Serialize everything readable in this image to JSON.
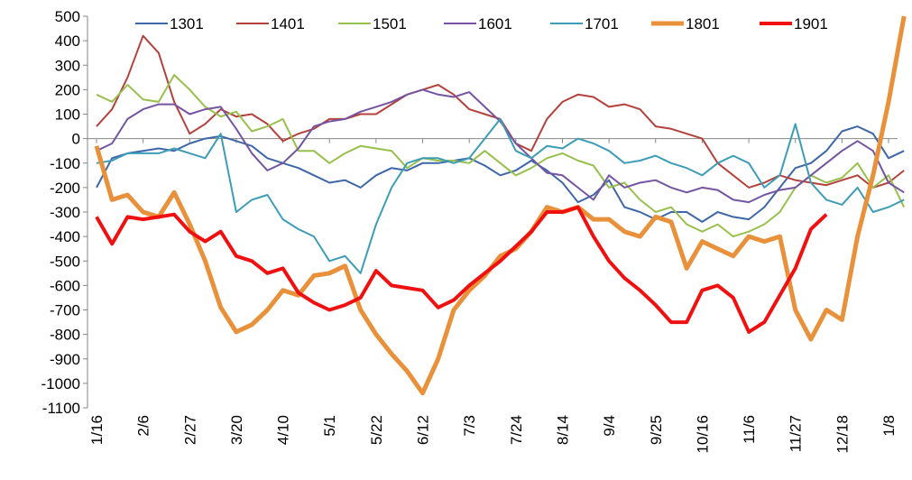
{
  "chart_data": {
    "type": "line",
    "categories": [
      "1/16",
      null,
      null,
      "2/6",
      null,
      null,
      "2/27",
      null,
      null,
      "3/20",
      null,
      null,
      "4/10",
      null,
      null,
      "5/1",
      null,
      null,
      "5/22",
      null,
      null,
      "6/12",
      null,
      null,
      "7/3",
      null,
      null,
      "7/24",
      null,
      null,
      "8/14",
      null,
      null,
      "9/4",
      null,
      null,
      "9/25",
      null,
      null,
      "10/16",
      null,
      null,
      "11/6",
      null,
      null,
      "11/27",
      null,
      null,
      "12/18",
      null,
      null,
      "1/8",
      null
    ],
    "ylim": [
      -1100,
      500
    ],
    "yticks": [
      500,
      400,
      300,
      200,
      100,
      0,
      -100,
      -200,
      -300,
      -400,
      -500,
      -600,
      -700,
      -800,
      -900,
      -1000,
      -1100
    ],
    "legend": "top",
    "series": [
      {
        "name": "1301",
        "color": "#3e67a8",
        "width": 2,
        "values": [
          -200,
          -80,
          -60,
          -50,
          -40,
          -50,
          -20,
          0,
          10,
          -10,
          -30,
          -80,
          -100,
          -120,
          -150,
          -180,
          -170,
          -200,
          -150,
          -120,
          -130,
          -100,
          -100,
          -90,
          -80,
          -110,
          -150,
          -130,
          -90,
          -130,
          -180,
          -260,
          -230,
          -170,
          -280,
          -300,
          -330,
          -300,
          -300,
          -340,
          -300,
          -320,
          -330,
          -280,
          -200,
          -120,
          -100,
          -50,
          30,
          50,
          20,
          -80,
          -50
        ]
      },
      {
        "name": "1401",
        "color": "#b4423c",
        "width": 2,
        "values": [
          50,
          120,
          250,
          420,
          350,
          150,
          20,
          60,
          120,
          90,
          100,
          60,
          -10,
          20,
          40,
          80,
          80,
          100,
          100,
          140,
          180,
          200,
          220,
          180,
          120,
          100,
          80,
          -20,
          -50,
          80,
          150,
          180,
          170,
          130,
          140,
          120,
          50,
          40,
          20,
          0,
          -100,
          -150,
          -200,
          -180,
          -150,
          -170,
          -180,
          -190,
          -170,
          -150,
          -200,
          -180,
          -130
        ]
      },
      {
        "name": "1501",
        "color": "#98c04c",
        "width": 2,
        "values": [
          180,
          150,
          220,
          160,
          150,
          260,
          200,
          130,
          90,
          110,
          30,
          50,
          80,
          -50,
          -50,
          -100,
          -60,
          -30,
          -40,
          -50,
          -120,
          -80,
          -90,
          -90,
          -100,
          -50,
          -100,
          -150,
          -120,
          -80,
          -60,
          -90,
          -110,
          -200,
          -180,
          -250,
          -300,
          -280,
          -350,
          -380,
          -350,
          -400,
          -380,
          -350,
          -300,
          -200,
          -150,
          -180,
          -160,
          -100,
          -200,
          -150,
          -280
        ]
      },
      {
        "name": "1601",
        "color": "#7554a2",
        "width": 2,
        "values": [
          -50,
          -20,
          80,
          120,
          140,
          140,
          100,
          120,
          130,
          40,
          -60,
          -130,
          -100,
          -40,
          50,
          70,
          80,
          110,
          130,
          150,
          180,
          200,
          180,
          170,
          190,
          130,
          70,
          -20,
          -80,
          -140,
          -150,
          -200,
          -250,
          -150,
          -200,
          -180,
          -170,
          -200,
          -220,
          -200,
          -210,
          -250,
          -260,
          -230,
          -210,
          -200,
          -150,
          -100,
          -50,
          -10,
          -50,
          -180,
          -220
        ]
      },
      {
        "name": "1701",
        "color": "#3d9cb6",
        "width": 2,
        "values": [
          -100,
          -90,
          -60,
          -60,
          -60,
          -40,
          -60,
          -80,
          20,
          -300,
          -250,
          -230,
          -330,
          -370,
          -400,
          -500,
          -480,
          -550,
          -350,
          -200,
          -100,
          -80,
          -80,
          -100,
          -80,
          0,
          80,
          -50,
          -80,
          -30,
          -40,
          0,
          -20,
          -50,
          -100,
          -90,
          -70,
          -100,
          -120,
          -150,
          -100,
          -70,
          -100,
          -200,
          -150,
          60,
          -180,
          -250,
          -270,
          -200,
          -300,
          -280,
          -250
        ]
      },
      {
        "name": "1801",
        "color": "#e8913a",
        "width": 5,
        "values": [
          -30,
          -250,
          -230,
          -300,
          -320,
          -220,
          -350,
          -500,
          -690,
          -790,
          -760,
          -700,
          -620,
          -640,
          -560,
          -550,
          -520,
          -700,
          -800,
          -880,
          -950,
          -1040,
          -900,
          -700,
          -620,
          -560,
          -480,
          -450,
          -380,
          -280,
          -300,
          -280,
          -330,
          -330,
          -380,
          -400,
          -320,
          -340,
          -530,
          -420,
          -450,
          -480,
          -400,
          -420,
          -400,
          -700,
          -820,
          -700,
          -740,
          -400,
          -150,
          150,
          500
        ]
      },
      {
        "name": "1901",
        "color": "#f01010",
        "width": 4,
        "values": [
          -320,
          -430,
          -320,
          -330,
          -320,
          -310,
          -380,
          -420,
          -380,
          -480,
          -500,
          -550,
          -530,
          -630,
          -670,
          -700,
          -680,
          -650,
          -540,
          -600,
          -610,
          -620,
          -690,
          -660,
          -600,
          -550,
          -500,
          -440,
          -380,
          -300,
          -300,
          -280,
          -400,
          -500,
          -570,
          -620,
          -680,
          -750,
          -750,
          -620,
          -600,
          -650,
          -790,
          -750,
          -640,
          -530,
          -370,
          -310,
          null,
          null,
          null,
          null,
          null
        ]
      }
    ]
  }
}
